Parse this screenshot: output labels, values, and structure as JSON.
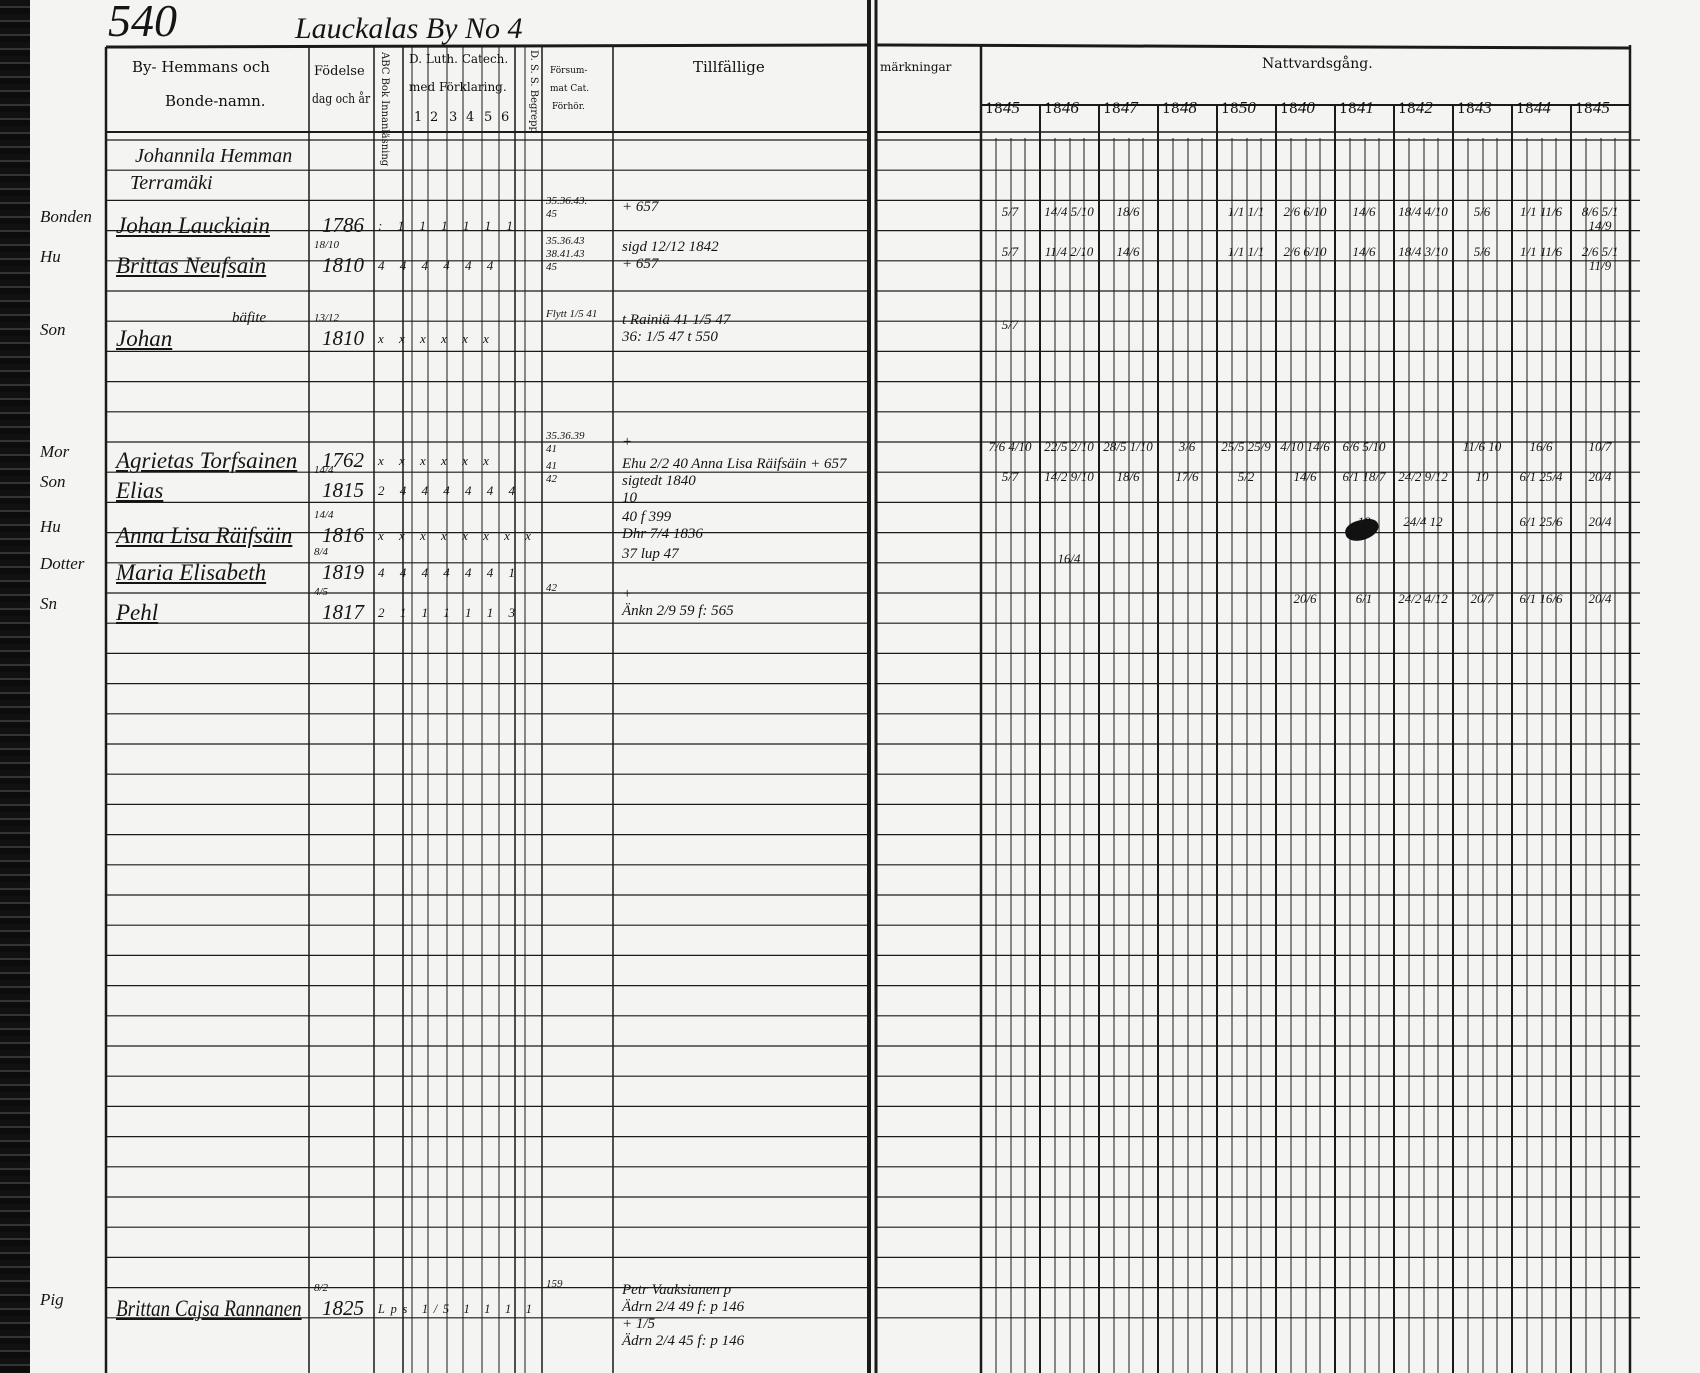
{
  "page_number": "540",
  "village_heading": "Lauckalas By No 4",
  "left_header": {
    "name_col": [
      "By- Hemmans och",
      "Bonde-namn."
    ],
    "birth_col": [
      "Födelse",
      "dag och år"
    ],
    "abc_col": "ABC Bok Innanläsning",
    "catechism_col": [
      "D. Luth. Catech.",
      "med Förklaring."
    ],
    "catechism_parts": [
      "1",
      "2",
      "3",
      "4",
      "5",
      "6"
    ],
    "dss_col": "D. S. S. Begrepp",
    "neglected_col": [
      "Försum-",
      "mat Cat.",
      "Förhör."
    ],
    "moves_col": "Tillfällige"
  },
  "right_header": {
    "remarks_col": "märkningar",
    "communion_col": "Nattvardsgång.",
    "years": [
      {
        "prefix": "18",
        "hand": "45"
      },
      {
        "prefix": "18",
        "hand": "46"
      },
      {
        "prefix": "18",
        "hand": "47"
      },
      {
        "prefix": "18",
        "hand": "48"
      },
      {
        "prefix": "18",
        "hand": "50"
      },
      {
        "prefix": "18",
        "hand": "40"
      },
      {
        "prefix": "18",
        "hand": "41"
      },
      {
        "prefix": "18",
        "hand": "42"
      },
      {
        "prefix": "18",
        "hand": "43"
      },
      {
        "prefix": "18",
        "hand": "44"
      },
      {
        "prefix": "18",
        "hand": "45"
      }
    ]
  },
  "homestead": [
    "Johannila Hemman",
    "Terramäki"
  ],
  "entries": [
    {
      "role": "Bonden",
      "name": "Johan Lauckiain",
      "birth_day": "",
      "birth_year": "1786",
      "catechism": ": 1 1 1 1 1 1",
      "neglected": [
        "35.36.43.",
        "45"
      ],
      "notes": [
        "+ 657"
      ],
      "communion": [
        "5/7",
        "14/4 5/10",
        "18/6",
        "",
        "1/1 1/1",
        "2/6 6/10",
        "14/6",
        "18/4 4/10",
        "5/6",
        "1/1 11/6",
        "8/6 5/1 14/9"
      ]
    },
    {
      "role": "Hu",
      "name": "Brittas Neufsain",
      "birth_day": "18/10",
      "birth_year": "1810",
      "catechism": "4 4 4 4 4 4",
      "neglected": [
        "35.36.43",
        "38.41.43",
        "45"
      ],
      "notes": [
        "sigd 12/12 1842",
        "+ 657"
      ],
      "communion": [
        "5/7",
        "11/4 2/10",
        "14/6",
        "",
        "1/1 1/1",
        "2/6 6/10",
        "14/6",
        "18/4 3/10",
        "5/6",
        "1/1 11/6",
        "2/6 5/1 11/9"
      ]
    },
    {
      "role": "Son",
      "name": "Johan",
      "extra": "bäfite",
      "birth_day": "13/12",
      "birth_year": "1810",
      "catechism": "x x x x x x",
      "neglected": [
        "Flytt 1/5 41"
      ],
      "notes": [
        "t Rainiä 41 1/5 47",
        "36: 1/5 47 t 550"
      ],
      "communion": [
        "5/7",
        "",
        "",
        "",
        "",
        "",
        "",
        "",
        "",
        "",
        ""
      ]
    },
    {
      "role": "Mor",
      "name": "Agrietas Torfsainen",
      "birth_day": "",
      "birth_year": "1762",
      "catechism": "x x x x x x",
      "neglected": [
        "35.36.39",
        "41"
      ],
      "notes": [
        "+"
      ],
      "communion": [
        "7/6 4/10",
        "22/5 2/10",
        "28/5 1/10",
        "3/6",
        "25/5 25/9",
        "4/10 14/6",
        "6/6 5/10",
        "",
        "11/6 10",
        "16/6",
        "10/7"
      ]
    },
    {
      "role": "Son",
      "name": "Elias",
      "birth_day": "14/4",
      "birth_year": "1815",
      "catechism": "2 4 4 4 4 4 4",
      "neglected": [
        "41",
        "42"
      ],
      "notes": [
        "Ehu 2/2 40 Anna Lisa Räifsäin + 657",
        "sigtedt 1840",
        "10"
      ],
      "communion": [
        "5/7",
        "14/2 9/10",
        "18/6",
        "17/6",
        "5/2",
        "14/6",
        "6/1 18/7",
        "24/2 9/12",
        "10",
        "6/1 25/4",
        "20/4"
      ]
    },
    {
      "role": "Hu",
      "name": "Anna Lisa Räifsäin",
      "birth_day": "14/4",
      "birth_year": "1816",
      "catechism": "x x x x x x x x",
      "neglected": [],
      "notes": [
        "40 f 399",
        "Dhr 7/4 1836"
      ],
      "communion": [
        "",
        "",
        "",
        "",
        "",
        "",
        "18",
        "24/4 12",
        "",
        "6/1 25/6",
        "20/4"
      ]
    },
    {
      "role": "Dotter",
      "name": "Maria Elisabeth",
      "birth_day": "8/4",
      "birth_year": "1819",
      "catechism": "4 4 4 4 4 4 1",
      "neglected": [],
      "notes": [
        "37 lup 47"
      ],
      "communion": [
        "",
        "16/4",
        "",
        "",
        "",
        "",
        "",
        "",
        "",
        "",
        ""
      ]
    },
    {
      "role": "Sn",
      "name": "Pehl",
      "birth_day": "4/5",
      "birth_year": "1817",
      "catechism": "2 1 1 1 1 1 3",
      "neglected": [
        "42"
      ],
      "notes": [
        "+",
        "Änkn 2/9 59 f: 565"
      ],
      "communion": [
        "",
        "",
        "",
        "",
        "",
        "20/6",
        "6/1",
        "24/2 4/12",
        "20/7",
        "6/1 16/6",
        "20/4"
      ]
    },
    {
      "role": "Pig",
      "name": "Brittan Cajsa Rannanen",
      "birth_day": "8/2",
      "birth_year": "1825",
      "catechism": "Lps 1/5 1 1 1 1",
      "neglected": [
        "159"
      ],
      "notes": [
        "Petr Vaaksianen p",
        "Ädrn 2/4 49 f: p 146",
        "+ 1/5",
        "Ädrn 2/4 45 f: p 146"
      ],
      "communion": [
        "",
        "",
        "",
        "",
        "",
        "",
        "",
        "",
        "",
        "",
        ""
      ]
    }
  ]
}
